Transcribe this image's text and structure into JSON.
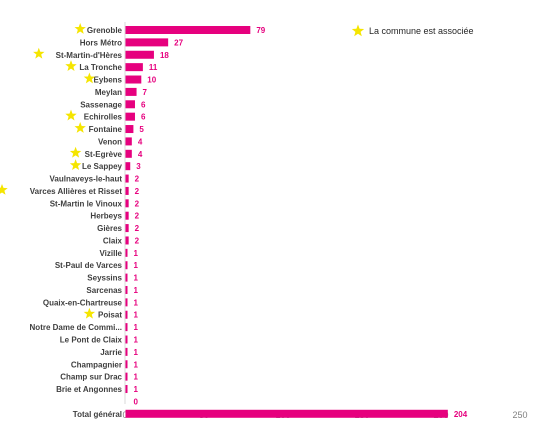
{
  "chart_data": {
    "type": "bar",
    "orientation": "horizontal",
    "bar_color": "#e6007e",
    "star_color": "#f5e500",
    "legend": {
      "label": "La commune  est associée",
      "icon": "star-icon",
      "placement": "top-right"
    },
    "categories": [
      "Grenoble",
      "Hors Métro",
      "St-Martin-d'Hères",
      "La Tronche",
      "Eybens",
      "Meylan",
      "Sassenage",
      "Echirolles",
      "Fontaine",
      "Venon",
      "St-Egrève",
      "Le Sappey",
      "Vaulnaveys-le-haut",
      "Varces Allières et Risset",
      "St-Martin le Vinoux",
      "Herbeys",
      "Gières",
      "Claix",
      "Vizille",
      "St-Paul de Varces",
      "Seyssins",
      "Sarcenas",
      "Quaix-en-Chartreuse",
      "Poisat",
      "Notre Dame de Commi...",
      "Le Pont de Claix",
      "Jarrie",
      "Champagnier",
      "Champ sur Drac",
      "Brie et Angonnes",
      "",
      "Total général"
    ],
    "values": [
      79,
      27,
      18,
      11,
      10,
      7,
      6,
      6,
      5,
      4,
      4,
      3,
      2,
      2,
      2,
      2,
      2,
      2,
      1,
      1,
      1,
      1,
      1,
      1,
      1,
      1,
      1,
      1,
      1,
      1,
      0,
      204
    ],
    "associated": [
      true,
      false,
      true,
      true,
      true,
      false,
      false,
      true,
      true,
      false,
      true,
      true,
      false,
      true,
      false,
      false,
      false,
      false,
      false,
      false,
      false,
      false,
      false,
      true,
      false,
      false,
      false,
      false,
      false,
      false,
      false,
      false
    ],
    "xticks": [
      0,
      50,
      100,
      150,
      200,
      250
    ],
    "xlim": [
      0,
      250
    ],
    "grid": false
  }
}
